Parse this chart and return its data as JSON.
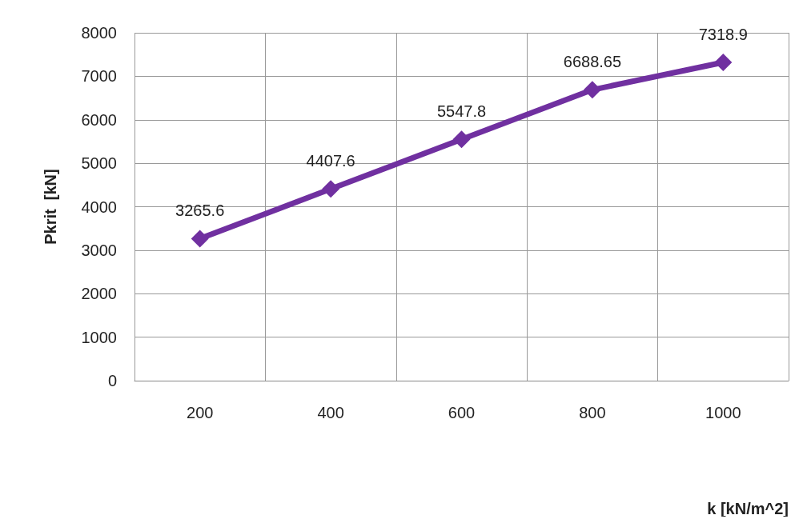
{
  "chart_data": {
    "type": "line",
    "xlabel": "k [kN/m^2]",
    "ylabel": "Pkrit  [kN]",
    "categories": [
      "200",
      "400",
      "600",
      "800",
      "1000"
    ],
    "series": [
      {
        "color": "#7030a0",
        "values": [
          3265.6,
          4407.6,
          5547.8,
          6688.65,
          7318.9
        ]
      }
    ],
    "ylim": [
      0,
      8000
    ],
    "yticks": [
      0,
      1000,
      2000,
      3000,
      4000,
      5000,
      6000,
      7000,
      8000
    ],
    "grid": true,
    "marker": "diamond",
    "line_style": "solid",
    "data_labels": true
  }
}
